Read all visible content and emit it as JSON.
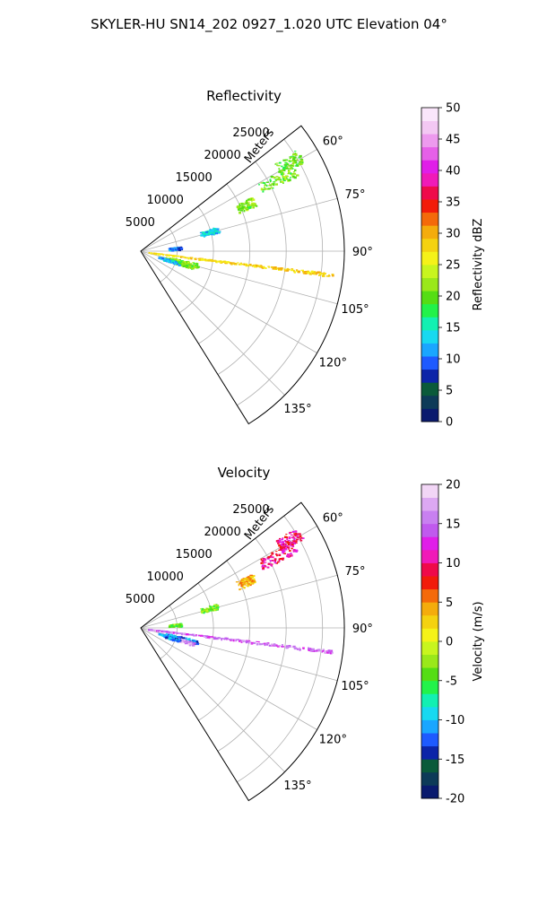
{
  "figure": {
    "suptitle": "SKYLER-HU  SN14_202  0927_1.020 UTC Elevation 04°"
  },
  "chart_data": [
    {
      "type": "heatmap",
      "projection": "polar-sector",
      "title": "Reflectivity",
      "radial_label": "Meters",
      "radial_ticks": [
        "5000",
        "10000",
        "15000",
        "20000",
        "25000"
      ],
      "radial_range": [
        0,
        28000
      ],
      "angle_ticks": [
        "60°",
        "75°",
        "90°",
        "105°",
        "120°",
        "135°"
      ],
      "angle_range_deg": [
        52,
        148
      ],
      "grid": true,
      "colorbar": {
        "label": "Reflectivity dBZ",
        "ticks": [
          "0",
          "5",
          "10",
          "15",
          "20",
          "25",
          "30",
          "35",
          "40",
          "45",
          "50"
        ],
        "range": [
          0,
          50
        ],
        "palette": [
          "#0a1a6e",
          "#0d3a58",
          "#0a5a3a",
          "#0c24a8",
          "#1e5aff",
          "#1aa6ff",
          "#17d9f0",
          "#12f0b2",
          "#22f24a",
          "#55dd14",
          "#9ae81a",
          "#c8f51e",
          "#f5f218",
          "#f4d210",
          "#f4ac0c",
          "#f46a0a",
          "#f21c0a",
          "#ef0a4a",
          "#f01ab8",
          "#e01ee8",
          "#e660e8",
          "#ed9aee",
          "#f3c8f3",
          "#fae6fb"
        ]
      },
      "echo_regions": [
        {
          "az": 59,
          "r_start": 22000,
          "r_end": 25500,
          "value": 20
        },
        {
          "az": 62,
          "r_start": 18500,
          "r_end": 24000,
          "value": 21
        },
        {
          "az": 66,
          "r_start": 14500,
          "r_end": 17000,
          "value": 21
        },
        {
          "az": 74,
          "r_start": 8500,
          "r_end": 11000,
          "value": 13
        },
        {
          "az": 85,
          "r_start": 3800,
          "r_end": 5500,
          "value": 10
        },
        {
          "az": 97,
          "r_start": 1000,
          "r_end": 26500,
          "value": 28
        },
        {
          "az": 104,
          "r_start": 3500,
          "r_end": 8000,
          "value": 21
        },
        {
          "az": 107,
          "r_start": 5000,
          "r_end": 7500,
          "value": 20
        },
        {
          "az": 108,
          "r_start": 2500,
          "r_end": 5500,
          "value": 12
        }
      ]
    },
    {
      "type": "heatmap",
      "projection": "polar-sector",
      "title": "Velocity",
      "radial_label": "Meters",
      "radial_ticks": [
        "5000",
        "10000",
        "15000",
        "20000",
        "25000"
      ],
      "radial_range": [
        0,
        28000
      ],
      "angle_ticks": [
        "60°",
        "75°",
        "90°",
        "105°",
        "120°",
        "135°"
      ],
      "angle_range_deg": [
        52,
        148
      ],
      "grid": true,
      "colorbar": {
        "label": "Velocity (m/s)",
        "ticks": [
          "-20",
          "-15",
          "-10",
          "-5",
          "0",
          "5",
          "10",
          "15",
          "20"
        ],
        "range": [
          -20,
          20
        ],
        "palette": [
          "#0a1a6e",
          "#0d3a58",
          "#0a5a3a",
          "#0c24a8",
          "#1e5aff",
          "#1aa6ff",
          "#17d9f0",
          "#12f0b2",
          "#22f24a",
          "#55dd14",
          "#9ae81a",
          "#c8f51e",
          "#f5f218",
          "#f4d210",
          "#f4ac0c",
          "#f46a0a",
          "#f21c0a",
          "#ef0a4a",
          "#f01ab8",
          "#e01ee8",
          "#c05aee",
          "#c880f0",
          "#dca8f2",
          "#f2d6f6"
        ]
      },
      "echo_regions": [
        {
          "az": 59,
          "r_start": 22000,
          "r_end": 25500,
          "value": 10
        },
        {
          "az": 62,
          "r_start": 18500,
          "r_end": 24000,
          "value": 10
        },
        {
          "az": 66,
          "r_start": 14500,
          "r_end": 17000,
          "value": 4
        },
        {
          "az": 74,
          "r_start": 8500,
          "r_end": 11000,
          "value": -3
        },
        {
          "az": 85,
          "r_start": 3800,
          "r_end": 5500,
          "value": -4
        },
        {
          "az": 97,
          "r_start": 1000,
          "r_end": 26500,
          "value": 15
        },
        {
          "az": 104,
          "r_start": 3500,
          "r_end": 8000,
          "value": -12
        },
        {
          "az": 107,
          "r_start": 5000,
          "r_end": 7500,
          "value": 17
        },
        {
          "az": 108,
          "r_start": 2500,
          "r_end": 5500,
          "value": -11
        }
      ]
    }
  ]
}
